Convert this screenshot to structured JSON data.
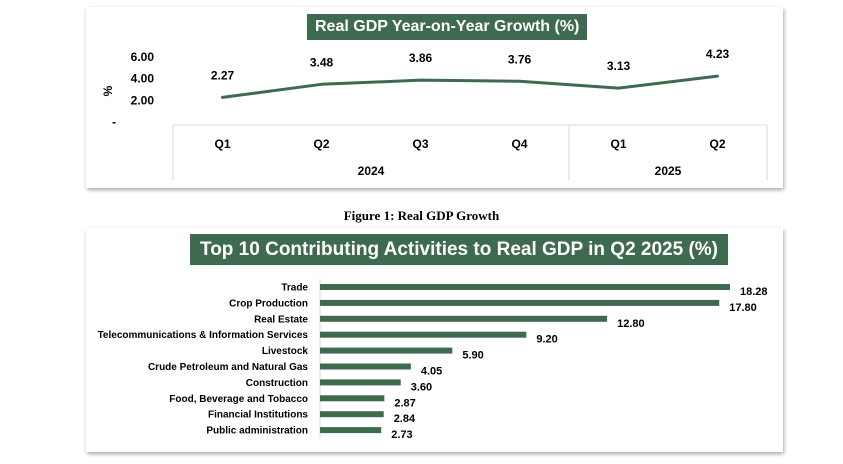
{
  "caption": "Figure 1: Real GDP Growth",
  "colors": {
    "accent": "#3e6a4f",
    "text": "#000000"
  },
  "chart_data": [
    {
      "type": "line",
      "title": "Real GDP Year-on-Year Growth (%)",
      "ylabel": "%",
      "y_ticks": [
        "6.00",
        "4.00",
        "2.00",
        "-"
      ],
      "ylim": [
        0,
        6
      ],
      "categories": [
        "Q1",
        "Q2",
        "Q3",
        "Q4",
        "Q1",
        "Q2"
      ],
      "groups": [
        {
          "label": "2024",
          "count": 4
        },
        {
          "label": "2025",
          "count": 2
        }
      ],
      "values": [
        2.27,
        3.48,
        3.86,
        3.76,
        3.13,
        4.23
      ],
      "data_labels": [
        "2.27",
        "3.48",
        "3.86",
        "3.76",
        "3.13",
        "4.23"
      ]
    },
    {
      "type": "bar",
      "orientation": "horizontal",
      "title": "Top 10 Contributing Activities to Real GDP in Q2 2025 (%)",
      "categories": [
        "Trade",
        "Crop Production",
        "Real Estate",
        "Telecommunications & Information Services",
        "Livestock",
        "Crude Petroleum and Natural Gas",
        "Construction",
        "Food, Beverage and Tobacco",
        "Financial Institutions",
        "Public administration"
      ],
      "values": [
        18.28,
        17.8,
        12.8,
        9.2,
        5.9,
        4.05,
        3.6,
        2.87,
        2.84,
        2.73
      ],
      "data_labels": [
        "18.28",
        "17.80",
        "12.80",
        "9.20",
        "5.90",
        "4.05",
        "3.60",
        "2.87",
        "2.84",
        "2.73"
      ]
    }
  ]
}
